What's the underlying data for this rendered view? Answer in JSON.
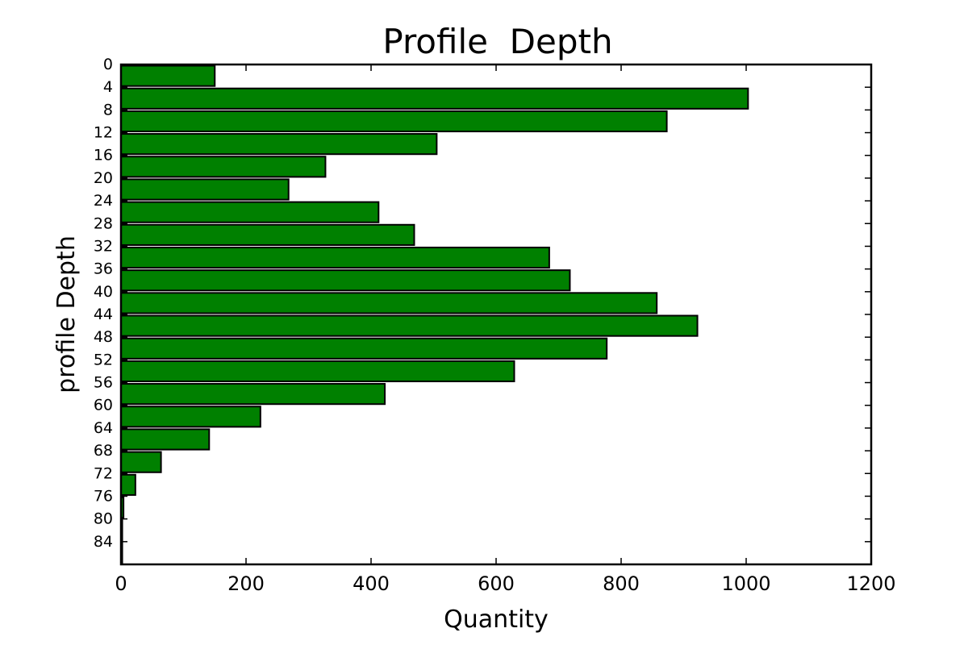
{
  "chart_data": {
    "type": "bar",
    "orientation": "horizontal",
    "title": "Profile  Depth",
    "xlabel": "Quantity",
    "ylabel": "profile Depth",
    "xlim": [
      0,
      1200
    ],
    "ylim": [
      0,
      88
    ],
    "y_inverted": true,
    "bin_width": 4,
    "xticks": [
      "0",
      "200",
      "400",
      "600",
      "800",
      "1000",
      "1200"
    ],
    "yticks": [
      "0",
      "4",
      "8",
      "12",
      "16",
      "20",
      "24",
      "28",
      "32",
      "36",
      "40",
      "44",
      "48",
      "52",
      "56",
      "60",
      "64",
      "68",
      "72",
      "76",
      "80",
      "84"
    ],
    "bins": [
      0,
      4,
      8,
      12,
      16,
      20,
      24,
      28,
      32,
      36,
      40,
      44,
      48,
      52,
      56,
      60,
      64,
      68,
      72,
      76,
      80,
      84
    ],
    "values": [
      150,
      1003,
      873,
      505,
      327,
      268,
      412,
      469,
      685,
      718,
      857,
      922,
      777,
      629,
      422,
      223,
      141,
      64,
      23,
      4,
      2,
      2
    ],
    "bar_color": "#008000",
    "edge_color": "#000000",
    "grid": false,
    "legend": "none"
  }
}
